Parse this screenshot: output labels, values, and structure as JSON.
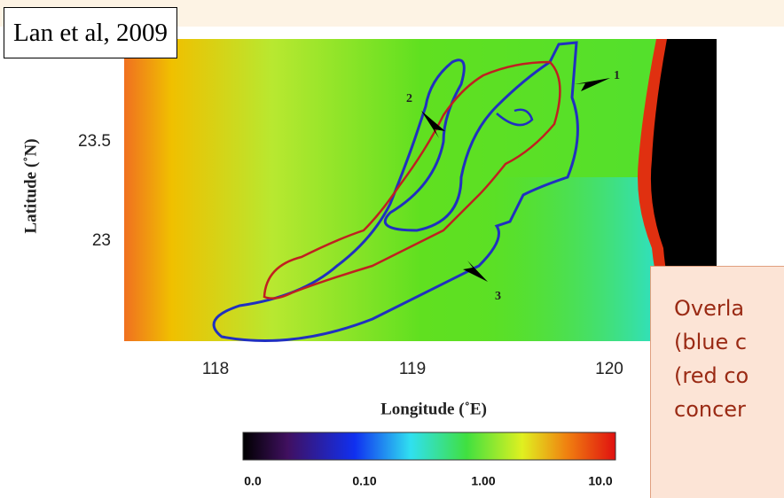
{
  "citation": "Lan et al, 2009",
  "figure": {
    "y_axis_label": "Latitude (˚N)",
    "y_tick_labels": [
      "23.5",
      "23"
    ],
    "x_axis_label": "Longitude (˚E)",
    "x_tick_labels": [
      "118",
      "119",
      "120"
    ],
    "arrow_labels": [
      "1",
      "2",
      "3"
    ],
    "colorbar_labels": [
      "0.0",
      "0.10",
      "1.00",
      "10.0"
    ]
  },
  "overlay_text": [
    "Overla",
    "(blue c",
    "(red co",
    "concer"
  ]
}
